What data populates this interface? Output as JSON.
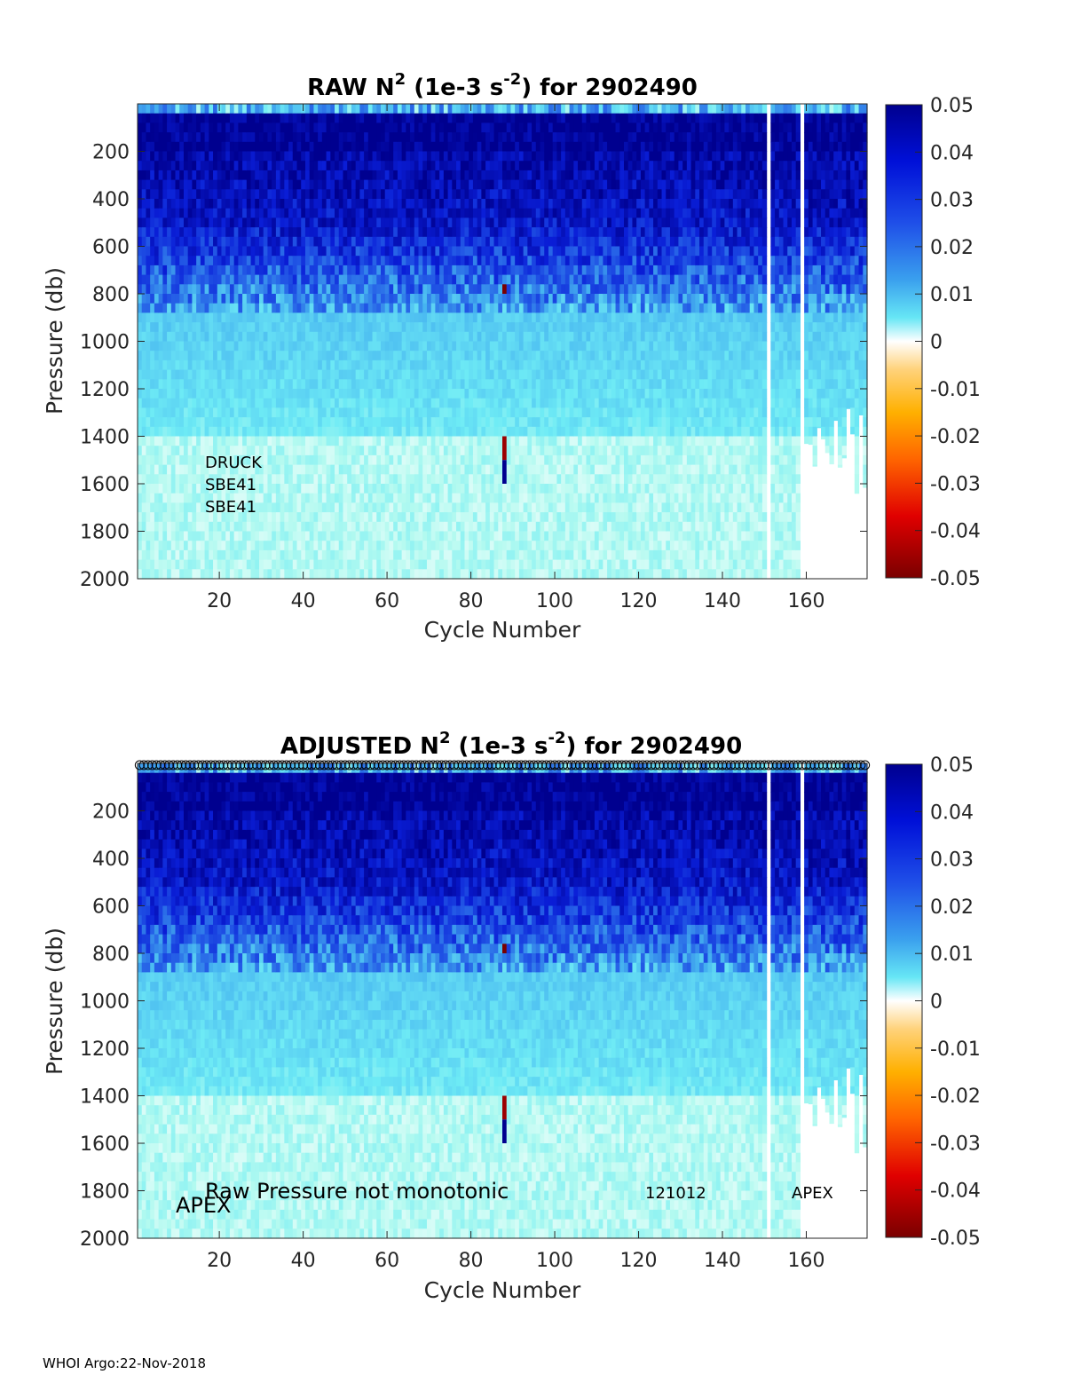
{
  "chart_data": [
    {
      "type": "heatmap",
      "title": "RAW N² (1e-3 s⁻²) for 2902490",
      "title_parts": {
        "lead": "RAW N",
        "sup1": "2",
        "mid": " (1e-3 s",
        "sup2": "-2",
        "tail": ") for 2902490"
      },
      "xlabel": "Cycle Number",
      "ylabel": "Pressure (db)",
      "xlim": [
        1,
        174
      ],
      "ylim": [
        2000,
        0
      ],
      "y_reversed": true,
      "xticks": [
        20,
        40,
        60,
        80,
        100,
        120,
        140,
        160
      ],
      "yticks": [
        200,
        400,
        600,
        800,
        1000,
        1200,
        1400,
        1600,
        1800,
        2000
      ],
      "colorbar": {
        "range": [
          -0.05,
          0.05
        ],
        "ticks": [
          "0.05",
          "0.04",
          "0.03",
          "0.02",
          "0.01",
          "0",
          "-0.01",
          "-0.02",
          "-0.03",
          "-0.04",
          "-0.05"
        ],
        "colormap": "jet-like, white near 0"
      },
      "missing_columns": [
        151,
        159
      ],
      "annotations": [
        "DRUCK",
        "SBE41",
        "SBE41"
      ],
      "grid": false
    },
    {
      "type": "heatmap",
      "title": "ADJUSTED N² (1e-3 s⁻²) for 2902490",
      "title_parts": {
        "lead": "ADJUSTED N",
        "sup1": "2",
        "mid": " (1e-3 s",
        "sup2": "-2",
        "tail": ") for 2902490"
      },
      "xlabel": "Cycle Number",
      "ylabel": "Pressure (db)",
      "xlim": [
        1,
        174
      ],
      "ylim": [
        2000,
        0
      ],
      "y_reversed": true,
      "xticks": [
        20,
        40,
        60,
        80,
        100,
        120,
        140,
        160
      ],
      "yticks": [
        200,
        400,
        600,
        800,
        1000,
        1200,
        1400,
        1600,
        1800,
        2000
      ],
      "colorbar": {
        "range": [
          -0.05,
          0.05
        ],
        "ticks": [
          "0.05",
          "0.04",
          "0.03",
          "0.02",
          "0.01",
          "0",
          "-0.01",
          "-0.02",
          "-0.03",
          "-0.04",
          "-0.05"
        ],
        "colormap": "jet-like, white near 0"
      },
      "missing_columns": [
        151,
        159
      ],
      "markers": "open circles along top edge for every cycle",
      "annotations": [
        "Raw Pressure not monotonic",
        "121012",
        "APEX",
        "APEX"
      ],
      "grid": false
    }
  ],
  "footer": "WHOI Argo:22-Nov-2018"
}
